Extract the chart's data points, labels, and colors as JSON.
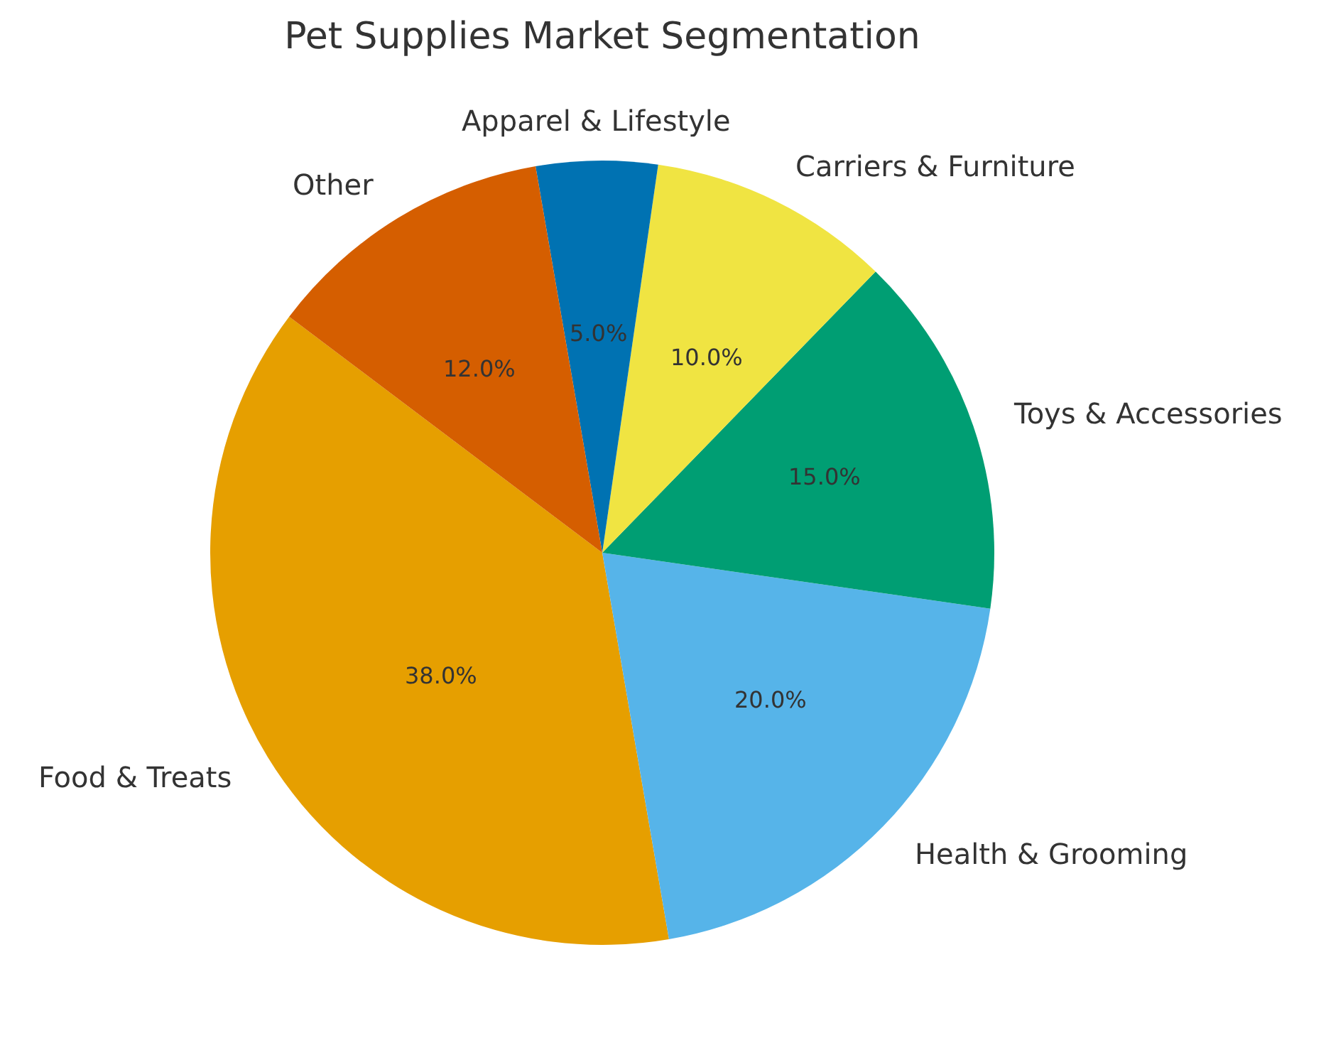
{
  "chart_data": {
    "type": "pie",
    "title": "Pet Supplies Market Segmentation",
    "categories": [
      "Food & Treats",
      "Health & Grooming",
      "Toys & Accessories",
      "Carriers & Furniture",
      "Apparel & Lifestyle",
      "Other"
    ],
    "values": [
      38,
      20,
      15,
      10,
      5,
      12
    ],
    "colors": [
      "#e69f00",
      "#56b4e9",
      "#009e73",
      "#f0e442",
      "#0072b2",
      "#d55e00"
    ],
    "value_labels": [
      "38.0%",
      "20.0%",
      "15.0%",
      "10.0%",
      "5.0%",
      "12.0%"
    ],
    "legend": false
  }
}
